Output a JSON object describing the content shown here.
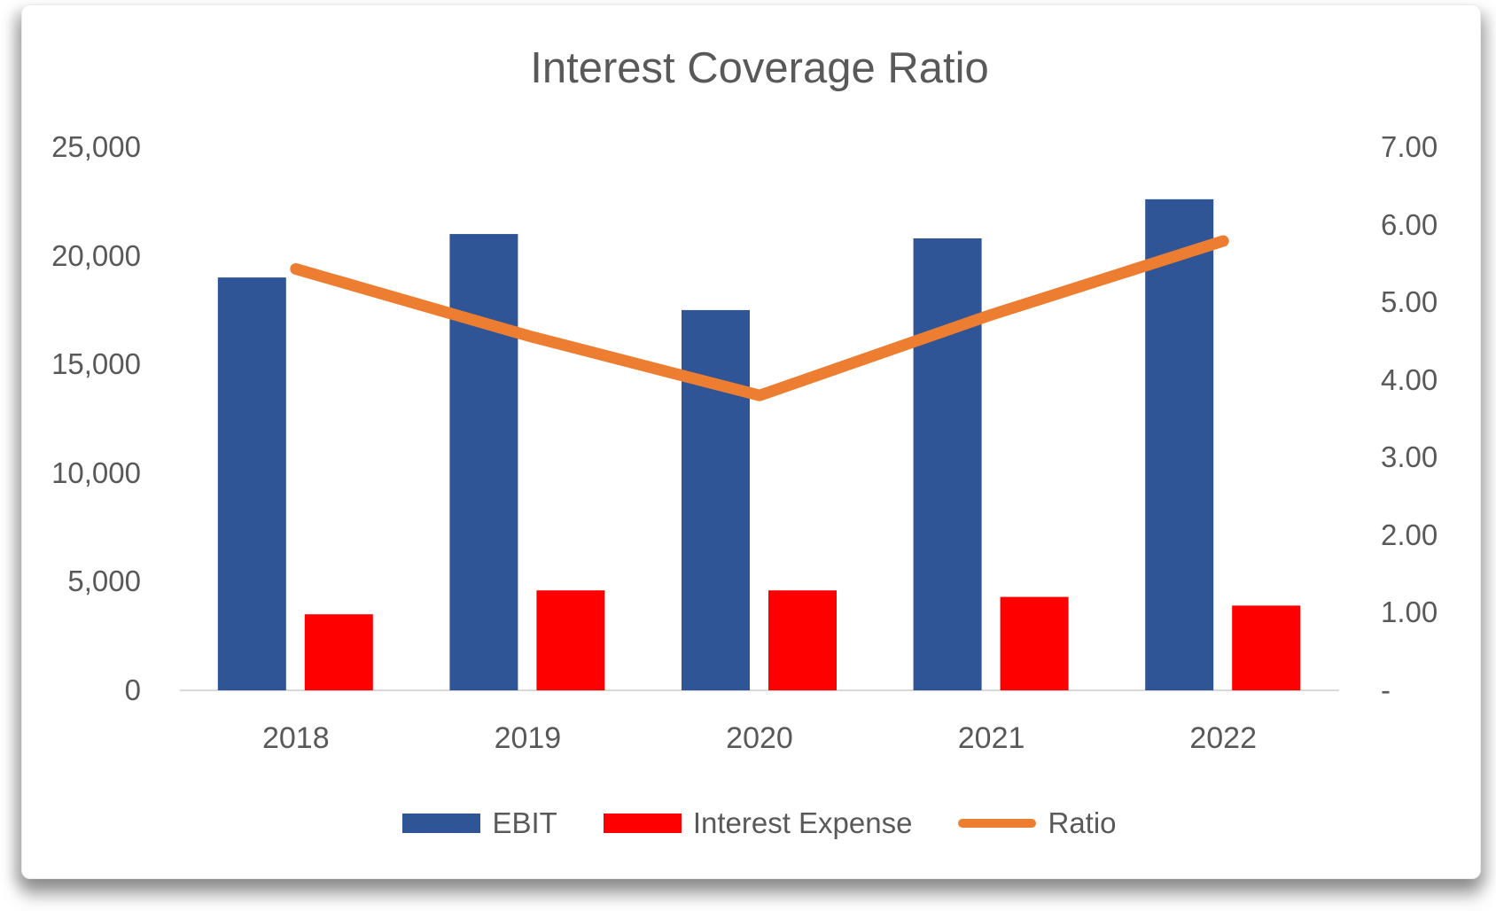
{
  "chart_data": {
    "type": "combo",
    "title": "Interest Coverage Ratio",
    "categories": [
      "2018",
      "2019",
      "2020",
      "2021",
      "2022"
    ],
    "series": [
      {
        "name": "EBIT",
        "type": "bar",
        "axis": "left",
        "color": "#2F5597",
        "values": [
          19000,
          21000,
          17500,
          20800,
          22600
        ]
      },
      {
        "name": "Interest Expense",
        "type": "bar",
        "axis": "left",
        "color": "#FF0000",
        "values": [
          3500,
          4600,
          4600,
          4300,
          3900
        ]
      },
      {
        "name": "Ratio",
        "type": "line",
        "axis": "right",
        "color": "#ED7D31",
        "values": [
          5.43,
          4.57,
          3.8,
          4.84,
          5.79
        ]
      }
    ],
    "left_axis": {
      "min": 0,
      "max": 25000,
      "tick_labels": [
        "25,000",
        "20,000",
        "15,000",
        "10,000",
        "5,000",
        "0"
      ],
      "tick_values": [
        25000,
        20000,
        15000,
        10000,
        5000,
        0
      ]
    },
    "right_axis": {
      "min": 0,
      "max": 7,
      "tick_labels": [
        "7.00",
        "6.00",
        "5.00",
        "4.00",
        "3.00",
        "2.00",
        "1.00",
        "-"
      ],
      "tick_values": [
        7,
        6,
        5,
        4,
        3,
        2,
        1,
        0
      ]
    },
    "legend_position": "bottom",
    "grid": false,
    "colors": {
      "axis_line": "#D9D9D9",
      "text": "#595959",
      "background": "#FFFFFF"
    }
  }
}
